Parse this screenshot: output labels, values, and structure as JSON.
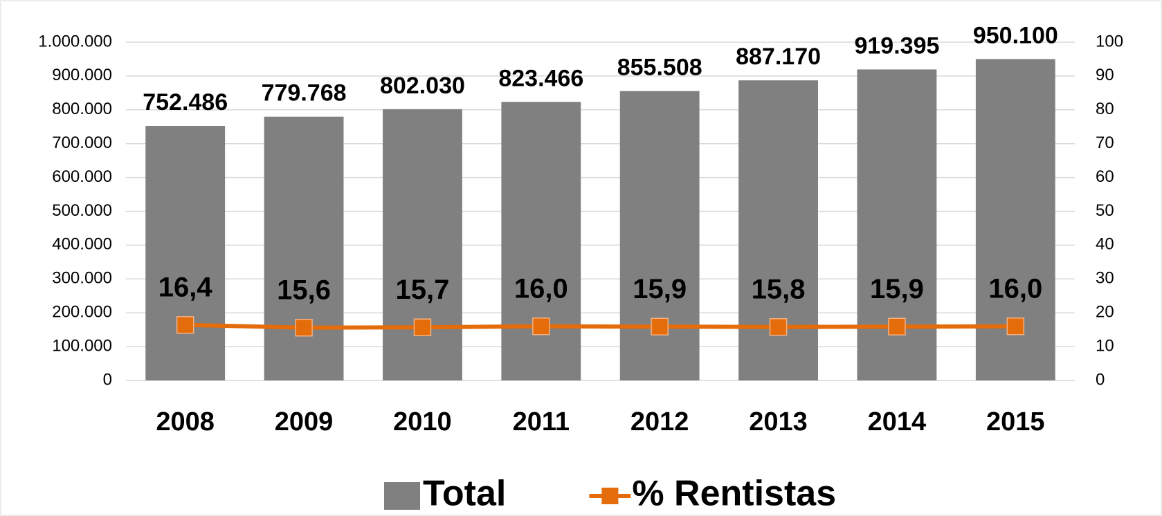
{
  "chart_data": {
    "type": "bar",
    "categories": [
      "2008",
      "2009",
      "2010",
      "2011",
      "2012",
      "2013",
      "2014",
      "2015"
    ],
    "series": [
      {
        "name": "Total",
        "type": "bar",
        "color": "#808080",
        "values": [
          752486,
          779768,
          802030,
          823466,
          855508,
          887170,
          919395,
          950100
        ],
        "value_labels": [
          "752.486",
          "779.768",
          "802.030",
          "823.466",
          "855.508",
          "887.170",
          "919.395",
          "950.100"
        ]
      },
      {
        "name": "% Rentistas",
        "type": "line",
        "axis": "y2",
        "color": "#E46C0A",
        "values": [
          16.4,
          15.6,
          15.7,
          16.0,
          15.9,
          15.8,
          15.9,
          16.0
        ],
        "value_labels": [
          "16,4",
          "15,6",
          "15,7",
          "16,0",
          "15,9",
          "15,8",
          "15,9",
          "16,0"
        ]
      }
    ],
    "ylim": [
      0,
      1000000
    ],
    "yticks": [
      0,
      {
        "value": 100000,
        "label": "100.000"
      },
      {
        "value": 200000,
        "label": "200.000"
      },
      {
        "value": 300000,
        "label": "300.000"
      },
      {
        "value": 400000,
        "label": "400.000"
      },
      {
        "value": 500000,
        "label": "500.000"
      },
      {
        "value": 600000,
        "label": "600.000"
      },
      {
        "value": 700000,
        "label": "700.000"
      },
      {
        "value": 800000,
        "label": "800.000"
      },
      {
        "value": 900000,
        "label": "900.000"
      },
      {
        "value": 1000000,
        "label": "1.000.000"
      }
    ],
    "y2lim": [
      0,
      100
    ],
    "y2ticks": [
      0,
      10,
      20,
      30,
      40,
      50,
      60,
      70,
      80,
      90,
      100
    ],
    "grid": true,
    "legend": "bottom"
  }
}
